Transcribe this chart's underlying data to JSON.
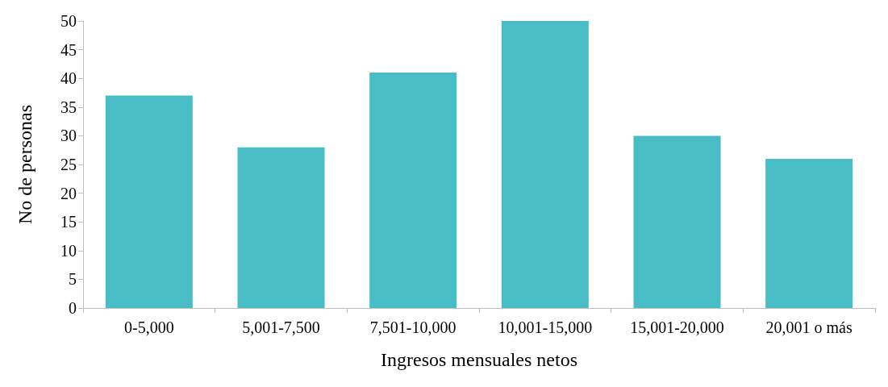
{
  "chart_data": {
    "type": "bar",
    "xlabel": "Ingresos mensuales netos",
    "ylabel": "No de personas",
    "categories": [
      "0-5,000",
      "5,001-7,500",
      "7,501-10,000",
      "10,001-15,000",
      "15,001-20,000",
      "20,001 o más"
    ],
    "values": [
      37,
      28,
      41,
      50,
      30,
      26
    ],
    "color": "#48bdc6",
    "ylim": [
      0,
      50
    ],
    "yticks": [
      0,
      5,
      10,
      15,
      20,
      25,
      30,
      35,
      40,
      45,
      50
    ],
    "grid": false
  }
}
